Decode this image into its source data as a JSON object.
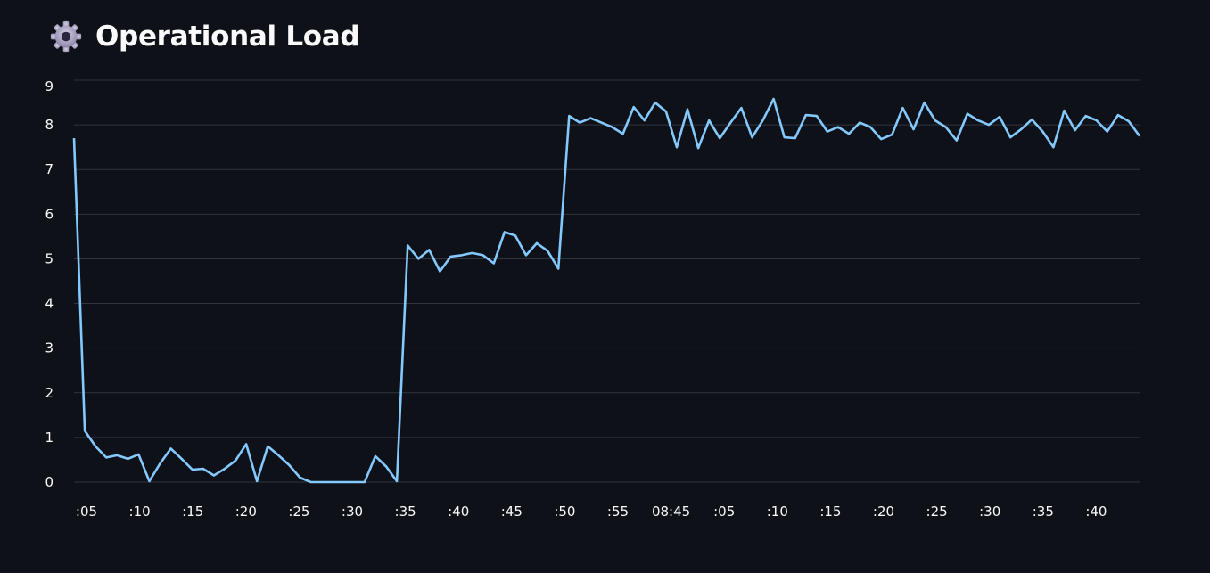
{
  "header": {
    "title": "Operational Load",
    "icon": "gear-icon"
  },
  "chart_data": {
    "type": "line",
    "title": "Operational Load",
    "xlabel": "",
    "ylabel": "",
    "ylim": [
      0,
      9
    ],
    "yticks": [
      "0",
      "1",
      "2",
      "3",
      "4",
      "5",
      "6",
      "7",
      "8",
      "9"
    ],
    "xticks": [
      ":05",
      ":10",
      ":15",
      ":20",
      ":25",
      ":30",
      ":35",
      ":40",
      ":45",
      ":50",
      ":55",
      "08:45",
      ":05",
      ":10",
      ":15",
      ":20",
      ":25",
      ":30",
      ":35",
      ":40"
    ],
    "grid": true,
    "legend": "none",
    "series_color": "#83c9ff",
    "series": [
      {
        "values": [
          7.7,
          1.15,
          0.8,
          0.55,
          0.6,
          0.52,
          0.62,
          0.02,
          0.42,
          0.75,
          0.52,
          0.28,
          0.3,
          0.15,
          0.3,
          0.48,
          0.85,
          0.02,
          0.8,
          0.6,
          0.38,
          0.1,
          0.0,
          0.0,
          0.0,
          0.0,
          0.0,
          0.0,
          0.58,
          0.35,
          0.02,
          5.3,
          5.0,
          5.2,
          4.72,
          5.05,
          5.08,
          5.13,
          5.08,
          4.9,
          5.6,
          5.52,
          5.08,
          5.35,
          5.18,
          4.78,
          8.2,
          8.05,
          8.15,
          8.05,
          7.95,
          7.8,
          8.4,
          8.1,
          8.5,
          8.3,
          7.5,
          8.35,
          7.48,
          8.1,
          7.7,
          8.05,
          8.38,
          7.72,
          8.1,
          8.58,
          7.72,
          7.7,
          8.22,
          8.2,
          7.85,
          7.95,
          7.8,
          8.05,
          7.95,
          7.68,
          7.78,
          8.38,
          7.9,
          8.5,
          8.1,
          7.95,
          7.65,
          8.25,
          8.1,
          8.0,
          8.18,
          7.72,
          7.9,
          8.12,
          7.85,
          7.5,
          8.32,
          7.88,
          8.2,
          8.1,
          7.85,
          8.22,
          8.08,
          7.75
        ]
      }
    ]
  }
}
